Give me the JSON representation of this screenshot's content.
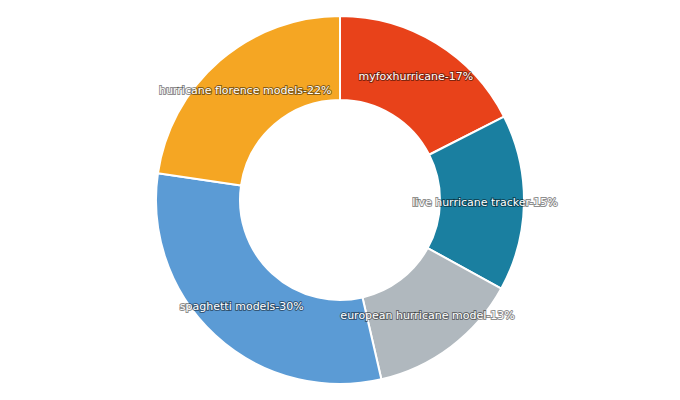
{
  "chart_data": {
    "type": "pie",
    "categories": [
      "myfoxhurricane-17%",
      "live hurricane tracker-15%",
      "european hurricane model-13%",
      "spaghetti models-30%",
      "hurricane florence models-22%"
    ],
    "values": [
      17,
      15,
      13,
      30,
      22
    ],
    "colors": [
      "#e8421a",
      "#1a7fa0",
      "#b0b8be",
      "#5b9bd5",
      "#f5a623"
    ]
  }
}
